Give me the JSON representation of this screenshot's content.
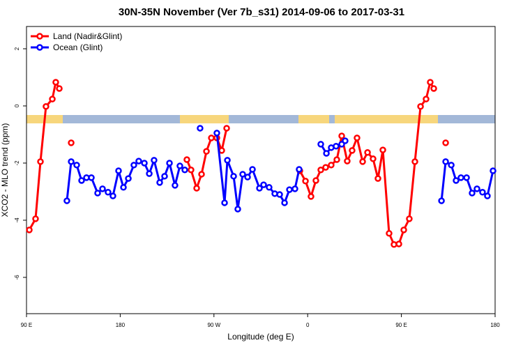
{
  "chart_data": {
    "type": "line",
    "title": "30N-35N November (Ver 7b_s31)   2014-09-06 to 2017-03-31",
    "x_label": "Longitude (deg E)",
    "y_label": "XCO2 - MLO trend (ppm)",
    "xlim": [
      90,
      540
    ],
    "ylim": [
      -7.27,
      2.78
    ],
    "xticks": [
      {
        "value": 90,
        "label": "90 E"
      },
      {
        "value": 180,
        "label": "180"
      },
      {
        "value": 270,
        "label": "90 W"
      },
      {
        "value": 360,
        "label": "0"
      },
      {
        "value": 450,
        "label": "90 E"
      },
      {
        "value": 540,
        "label": "180"
      }
    ],
    "yticks": [
      -6,
      -4,
      -2,
      0,
      2
    ],
    "legend": "top-left",
    "series": [
      {
        "name": "Land (Nadir&Glint)",
        "color": "#ff0000",
        "x": [
          92.7,
          98.7,
          103.4,
          108.7,
          114.8,
          118.1,
          121.5,
          null,
          132.9,
          null,
          244,
          248,
          253.4,
          258.1,
          262.8,
          267.5,
          272.8,
          277.5,
          282.2,
          null,
          352.5,
          357.9,
          363.2,
          367.9,
          372.6,
          377.3,
          382.6,
          388,
          392.7,
          398,
          402.7,
          407.4,
          412.8,
          417.5,
          422.8,
          427.5,
          432.2,
          438.2,
          442.9,
          447.6,
          452.3,
          457.6,
          463,
          468.4,
          473.7,
          477.7,
          481.1,
          null,
          492.5
        ],
        "values": [
          -4.34,
          -3.95,
          -1.95,
          -0.02,
          0.24,
          0.83,
          0.61,
          null,
          -1.29,
          null,
          -1.88,
          -2.24,
          -2.88,
          -2.39,
          -1.59,
          -1.12,
          -1.12,
          -1.56,
          -0.78,
          null,
          -2.27,
          -2.63,
          -3.17,
          -2.61,
          -2.24,
          -2.15,
          -2.07,
          -1.88,
          -1.05,
          -1.93,
          -1.56,
          -1.12,
          -1.95,
          -1.63,
          -1.85,
          -2.54,
          -1.54,
          -4.46,
          -4.85,
          -4.83,
          -4.34,
          -3.95,
          -1.95,
          -0.02,
          0.24,
          0.83,
          0.61,
          null,
          -1.29
        ]
      },
      {
        "name": "Ocean (Glint)",
        "color": "#0000ff",
        "x": [
          128.8,
          132.9,
          138.2,
          142.9,
          147.6,
          152.3,
          158.3,
          163,
          168.3,
          173,
          178.4,
          183.1,
          187.8,
          193.1,
          197.8,
          203.2,
          207.9,
          212.5,
          217.9,
          222.6,
          227.3,
          232.6,
          237.3,
          242,
          null,
          256.7,
          null,
          272.8,
          280.2,
          282.9,
          288.9,
          292.9,
          297.6,
          302.3,
          307,
          313.7,
          317.7,
          323,
          328.4,
          333.1,
          337.8,
          342.5,
          347.8,
          351.8,
          null,
          372.6,
          378,
          382.6,
          387.3,
          392.7,
          396,
          null,
          488.5,
          492.5,
          497.9,
          502.5,
          507.2,
          512.6,
          517.9,
          522.6,
          527.9,
          532.6,
          538
        ],
        "values": [
          -3.32,
          -1.95,
          -2.07,
          -2.61,
          -2.51,
          -2.51,
          -3.05,
          -2.9,
          -3.02,
          -3.15,
          -2.27,
          -2.85,
          -2.54,
          -2.07,
          -1.93,
          -2,
          -2.37,
          -1.9,
          -2.68,
          -2.46,
          -2,
          -2.78,
          -2.1,
          -2.24,
          null,
          -0.78,
          null,
          -0.95,
          -3.39,
          -1.9,
          -2.46,
          -3.61,
          -2.39,
          -2.49,
          -2.22,
          -2.88,
          -2.76,
          -2.85,
          -3.07,
          -3.1,
          -3.39,
          -2.93,
          -2.9,
          -2.22,
          null,
          -1.34,
          -1.66,
          -1.46,
          -1.41,
          -1.34,
          -1.22,
          null,
          -3.32,
          -1.95,
          -2.07,
          -2.61,
          -2.51,
          -2.51,
          -3.05,
          -2.9,
          -3.02,
          -3.15,
          -2.27
        ]
      }
    ]
  }
}
